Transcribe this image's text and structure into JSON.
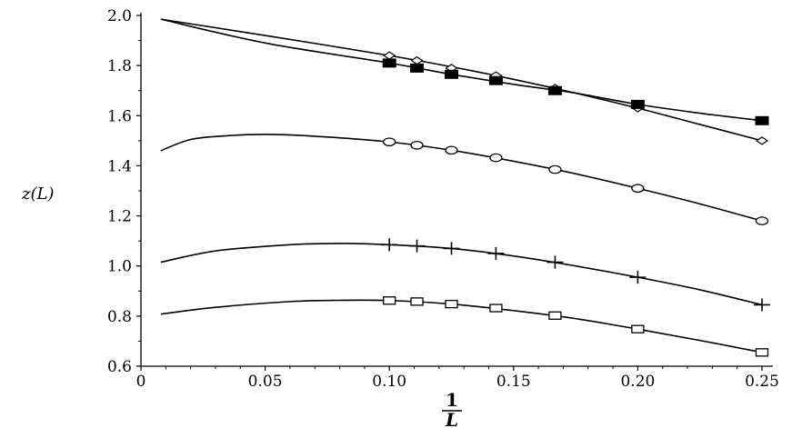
{
  "chart_data": {
    "type": "line",
    "xlabel_num": "1",
    "xlabel_den": "L",
    "ylabel": "z(L)",
    "xlim": [
      0,
      0.25
    ],
    "ylim": [
      0.6,
      2.0
    ],
    "xticks": [
      "0",
      "0.05",
      "0.10",
      "0.15",
      "0.20",
      "0.25"
    ],
    "yticks": [
      "0.6",
      "0.8",
      "1.0",
      "1.2",
      "1.4",
      "1.6",
      "1.8",
      "2.0"
    ],
    "grid": false,
    "series": [
      {
        "marker": "diamond",
        "x": [
          0.1,
          0.1111,
          0.125,
          0.1429,
          0.1667,
          0.2,
          0.25
        ],
        "y": [
          1.84,
          1.82,
          1.79,
          1.76,
          1.71,
          1.63,
          1.5
        ],
        "fit": [
          [
            0.008,
            1.985
          ],
          [
            0.05,
            1.92
          ],
          [
            0.1,
            1.84
          ],
          [
            0.125,
            1.795
          ],
          [
            0.15,
            1.745
          ],
          [
            0.175,
            1.69
          ],
          [
            0.2,
            1.63
          ],
          [
            0.225,
            1.565
          ],
          [
            0.25,
            1.5
          ]
        ]
      },
      {
        "marker": "filled-square",
        "x": [
          0.1,
          0.1111,
          0.125,
          0.1429,
          0.1667,
          0.2,
          0.25
        ],
        "y": [
          1.81,
          1.79,
          1.765,
          1.74,
          1.7,
          1.645,
          1.58
        ],
        "fit": [
          [
            0.008,
            1.985
          ],
          [
            0.05,
            1.89
          ],
          [
            0.1,
            1.81
          ],
          [
            0.125,
            1.765
          ],
          [
            0.15,
            1.725
          ],
          [
            0.175,
            1.69
          ],
          [
            0.2,
            1.645
          ],
          [
            0.225,
            1.61
          ],
          [
            0.25,
            1.58
          ]
        ]
      },
      {
        "marker": "circle",
        "x": [
          0.1,
          0.1111,
          0.125,
          0.1429,
          0.1667,
          0.2,
          0.25
        ],
        "y": [
          1.495,
          1.482,
          1.462,
          1.432,
          1.385,
          1.31,
          1.18
        ],
        "fit": [
          [
            0.008,
            1.46
          ],
          [
            0.02,
            1.505
          ],
          [
            0.035,
            1.52
          ],
          [
            0.05,
            1.525
          ],
          [
            0.07,
            1.518
          ],
          [
            0.1,
            1.495
          ],
          [
            0.125,
            1.462
          ],
          [
            0.15,
            1.418
          ],
          [
            0.175,
            1.368
          ],
          [
            0.2,
            1.31
          ],
          [
            0.225,
            1.248
          ],
          [
            0.25,
            1.18
          ]
        ]
      },
      {
        "marker": "plus",
        "x": [
          0.1,
          0.1111,
          0.125,
          0.1429,
          0.1667,
          0.2,
          0.25
        ],
        "y": [
          1.085,
          1.08,
          1.07,
          1.05,
          1.015,
          0.955,
          0.845
        ],
        "fit": [
          [
            0.008,
            1.015
          ],
          [
            0.03,
            1.06
          ],
          [
            0.06,
            1.085
          ],
          [
            0.08,
            1.09
          ],
          [
            0.1,
            1.085
          ],
          [
            0.125,
            1.07
          ],
          [
            0.15,
            1.04
          ],
          [
            0.175,
            1.0
          ],
          [
            0.2,
            0.955
          ],
          [
            0.225,
            0.905
          ],
          [
            0.25,
            0.845
          ]
        ]
      },
      {
        "marker": "square",
        "x": [
          0.1,
          0.1111,
          0.125,
          0.1429,
          0.1667,
          0.2,
          0.25
        ],
        "y": [
          0.862,
          0.858,
          0.848,
          0.832,
          0.802,
          0.748,
          0.655
        ],
        "fit": [
          [
            0.008,
            0.808
          ],
          [
            0.03,
            0.835
          ],
          [
            0.06,
            0.858
          ],
          [
            0.08,
            0.863
          ],
          [
            0.1,
            0.862
          ],
          [
            0.125,
            0.848
          ],
          [
            0.15,
            0.822
          ],
          [
            0.175,
            0.79
          ],
          [
            0.2,
            0.748
          ],
          [
            0.225,
            0.703
          ],
          [
            0.25,
            0.655
          ]
        ]
      }
    ]
  }
}
